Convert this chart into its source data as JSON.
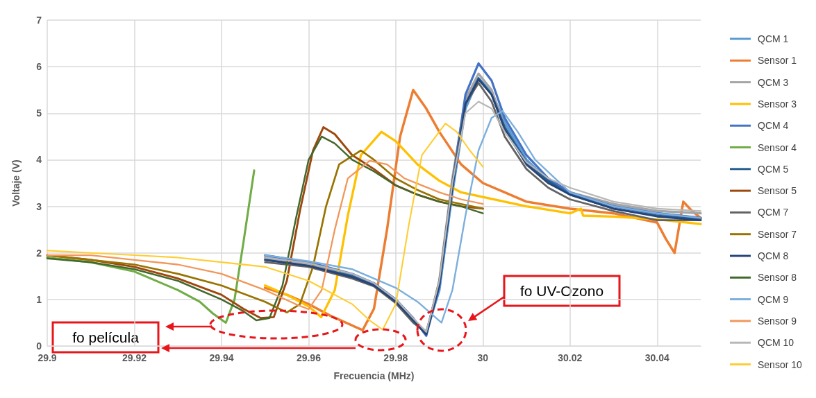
{
  "chart_data": {
    "type": "line",
    "xlabel": "Frecuencia (MHz)",
    "ylabel": "Voltaje (V)",
    "xlim": [
      29.9,
      30.05
    ],
    "xticks": [
      29.9,
      29.92,
      29.94,
      29.96,
      29.98,
      30,
      30.02,
      30.04
    ],
    "ylim": [
      0,
      7
    ],
    "yticks": [
      0,
      1,
      2,
      3,
      4,
      5,
      6,
      7
    ],
    "grid": true,
    "legend": "right",
    "marker": "none",
    "line_style": "solid",
    "annotations": [
      "fo película",
      "fo UV-Ozono"
    ],
    "series": [
      {
        "name": "QCM 1",
        "color": "#5b9bd5",
        "x": [
          29.95,
          29.96,
          29.97,
          29.975,
          29.98,
          29.984,
          29.987,
          29.99,
          29.993,
          29.996,
          29.999,
          30.002,
          30.005,
          30.01,
          30.015,
          30.02,
          30.03,
          30.04,
          30.05
        ],
        "values": [
          1.9,
          1.75,
          1.5,
          1.3,
          0.95,
          0.55,
          0.3,
          1.2,
          3.3,
          5.1,
          5.75,
          5.45,
          4.8,
          4.0,
          3.55,
          3.3,
          3.0,
          2.85,
          2.75
        ]
      },
      {
        "name": "Sensor 1",
        "color": "#ed7d31",
        "x": [
          29.95,
          29.955,
          29.96,
          29.965,
          29.9724,
          29.975,
          29.978,
          29.981,
          29.984,
          29.987,
          29.99,
          29.995,
          30.0,
          30.005,
          30.01,
          30.02,
          30.03,
          30.04,
          30.042,
          30.044,
          30.046,
          30.048,
          30.05
        ],
        "values": [
          1.25,
          1.1,
          0.9,
          0.65,
          0.34,
          0.8,
          2.5,
          4.5,
          5.5,
          5.1,
          4.6,
          3.9,
          3.5,
          3.3,
          3.1,
          2.95,
          2.85,
          2.65,
          2.3,
          2.0,
          3.1,
          2.9,
          2.75
        ]
      },
      {
        "name": "QCM 3",
        "color": "#a5a5a5",
        "x": [
          29.95,
          29.96,
          29.97,
          29.975,
          29.98,
          29.984,
          29.987,
          29.99,
          29.993,
          29.996,
          29.999,
          30.002,
          30.005,
          30.01,
          30.015,
          30.02,
          30.03,
          30.04,
          30.05
        ],
        "values": [
          1.9,
          1.75,
          1.5,
          1.3,
          0.95,
          0.55,
          0.25,
          1.4,
          3.6,
          5.3,
          5.85,
          5.5,
          4.7,
          3.9,
          3.5,
          3.3,
          3.05,
          2.9,
          2.85
        ]
      },
      {
        "name": "Sensor 3",
        "color": "#ffc000",
        "x": [
          29.95,
          29.955,
          29.96,
          29.9629,
          29.966,
          29.969,
          29.972,
          29.9767,
          29.98,
          29.985,
          29.99,
          29.995,
          30.0,
          30.01,
          30.02,
          30.0225,
          30.023,
          30.03,
          30.04,
          30.05
        ],
        "values": [
          1.3,
          1.1,
          0.85,
          0.62,
          1.2,
          2.8,
          4.1,
          4.6,
          4.4,
          3.9,
          3.55,
          3.3,
          3.2,
          3.0,
          2.85,
          2.95,
          2.8,
          2.78,
          2.72,
          2.62
        ]
      },
      {
        "name": "QCM 4",
        "color": "#4472c4",
        "x": [
          29.95,
          29.96,
          29.97,
          29.975,
          29.98,
          29.984,
          29.987,
          29.99,
          29.993,
          29.996,
          29.999,
          30.002,
          30.005,
          30.01,
          30.015,
          30.02,
          30.03,
          30.04,
          30.05
        ],
        "values": [
          1.95,
          1.8,
          1.55,
          1.35,
          1.0,
          0.6,
          0.22,
          1.3,
          3.5,
          5.4,
          6.07,
          5.7,
          4.9,
          4.1,
          3.6,
          3.3,
          3.0,
          2.85,
          2.75
        ]
      },
      {
        "name": "Sensor 4",
        "color": "#70ad47",
        "x": [
          29.9,
          29.91,
          29.92,
          29.93,
          29.935,
          29.938,
          29.941,
          29.943,
          29.945,
          29.9475
        ],
        "values": [
          1.9,
          1.8,
          1.6,
          1.2,
          0.95,
          0.7,
          0.5,
          1.0,
          2.2,
          3.77
        ]
      },
      {
        "name": "QCM 5",
        "color": "#255e91",
        "x": [
          29.95,
          29.96,
          29.97,
          29.975,
          29.98,
          29.984,
          29.987,
          29.99,
          29.993,
          29.996,
          29.999,
          30.002,
          30.005,
          30.01,
          30.015,
          30.02,
          30.03,
          30.04,
          30.05
        ],
        "values": [
          1.85,
          1.72,
          1.5,
          1.3,
          0.95,
          0.55,
          0.25,
          1.3,
          3.4,
          5.2,
          5.75,
          5.4,
          4.7,
          3.95,
          3.55,
          3.25,
          2.95,
          2.8,
          2.72
        ]
      },
      {
        "name": "Sensor 5",
        "color": "#9e480e",
        "x": [
          29.9,
          29.91,
          29.92,
          29.93,
          29.94,
          29.945,
          29.949,
          29.952,
          29.955,
          29.958,
          29.961,
          29.9634,
          29.966,
          29.97,
          29.975,
          29.98,
          29.985,
          29.99,
          29.995,
          30.0
        ],
        "values": [
          1.95,
          1.85,
          1.7,
          1.45,
          1.1,
          0.8,
          0.6,
          0.62,
          1.4,
          2.9,
          4.2,
          4.7,
          4.55,
          4.1,
          3.8,
          3.45,
          3.25,
          3.1,
          3.0,
          2.95
        ]
      },
      {
        "name": "QCM 7",
        "color": "#636363",
        "x": [
          29.95,
          29.96,
          29.97,
          29.975,
          29.98,
          29.984,
          29.987,
          29.99,
          29.993,
          29.996,
          29.999,
          30.002,
          30.005,
          30.01,
          30.015,
          30.02,
          30.03,
          30.04,
          30.05
        ],
        "values": [
          1.8,
          1.7,
          1.45,
          1.28,
          0.92,
          0.5,
          0.28,
          1.4,
          3.5,
          5.2,
          5.65,
          5.25,
          4.5,
          3.8,
          3.4,
          3.15,
          2.9,
          2.7,
          2.7
        ]
      },
      {
        "name": "Sensor 7",
        "color": "#997300",
        "x": [
          29.9,
          29.91,
          29.92,
          29.93,
          29.94,
          29.95,
          29.955,
          29.958,
          29.961,
          29.964,
          29.967,
          29.972,
          29.975,
          29.98,
          29.985,
          29.99,
          29.995,
          30.0
        ],
        "values": [
          1.95,
          1.85,
          1.75,
          1.55,
          1.3,
          0.95,
          0.72,
          0.9,
          1.7,
          3.0,
          3.9,
          4.2,
          4.0,
          3.6,
          3.35,
          3.15,
          3.05,
          2.95
        ]
      },
      {
        "name": "QCM 8",
        "color": "#264478",
        "x": [
          29.95,
          29.96,
          29.97,
          29.975,
          29.98,
          29.984,
          29.987,
          29.99,
          29.993,
          29.996,
          29.999,
          30.002,
          30.005,
          30.01,
          30.015,
          30.02,
          30.03,
          30.04,
          30.05
        ],
        "values": [
          1.85,
          1.72,
          1.48,
          1.3,
          0.95,
          0.55,
          0.25,
          1.3,
          3.4,
          5.2,
          5.72,
          5.4,
          4.65,
          3.9,
          3.5,
          3.25,
          2.95,
          2.78,
          2.7
        ]
      },
      {
        "name": "Sensor 8",
        "color": "#43682b",
        "x": [
          29.9,
          29.91,
          29.92,
          29.93,
          29.94,
          29.945,
          29.948,
          29.951,
          29.954,
          29.957,
          29.96,
          29.963,
          29.966,
          29.97,
          29.975,
          29.98,
          29.985,
          29.99,
          29.995,
          30.0
        ],
        "values": [
          1.88,
          1.8,
          1.65,
          1.4,
          1.0,
          0.75,
          0.55,
          0.6,
          1.3,
          2.7,
          4.0,
          4.5,
          4.35,
          4.0,
          3.75,
          3.45,
          3.25,
          3.1,
          3.0,
          2.85
        ]
      },
      {
        "name": "QCM 9",
        "color": "#7cafdd",
        "x": [
          29.95,
          29.96,
          29.97,
          29.98,
          29.985,
          29.9905,
          29.993,
          29.996,
          29.999,
          30.002,
          30.0045,
          30.008,
          30.012,
          30.02,
          30.03,
          30.04,
          30.05
        ],
        "values": [
          1.95,
          1.82,
          1.65,
          1.25,
          0.95,
          0.5,
          1.2,
          2.8,
          4.2,
          4.9,
          5.05,
          4.6,
          4.0,
          3.3,
          3.0,
          2.85,
          2.75
        ]
      },
      {
        "name": "Sensor 9",
        "color": "#f1975a",
        "x": [
          29.9,
          29.91,
          29.92,
          29.93,
          29.94,
          29.95,
          29.957,
          29.96,
          29.963,
          29.966,
          29.969,
          29.974,
          29.978,
          29.982,
          29.986,
          29.99,
          29.995,
          30.0
        ],
        "values": [
          1.95,
          1.95,
          1.85,
          1.75,
          1.55,
          1.2,
          0.9,
          0.79,
          1.2,
          2.5,
          3.6,
          3.98,
          3.9,
          3.6,
          3.45,
          3.3,
          3.15,
          3.05
        ]
      },
      {
        "name": "QCM 10",
        "color": "#b7b7b7",
        "x": [
          29.95,
          29.96,
          29.97,
          29.975,
          29.98,
          29.984,
          29.987,
          29.99,
          29.993,
          29.996,
          29.999,
          30.002,
          30.005,
          30.01,
          30.015,
          30.02,
          30.03,
          30.04,
          30.05
        ],
        "values": [
          1.9,
          1.78,
          1.55,
          1.35,
          1.0,
          0.6,
          0.3,
          1.4,
          3.5,
          5.0,
          5.25,
          5.1,
          4.6,
          3.95,
          3.6,
          3.4,
          3.1,
          2.95,
          2.9
        ]
      },
      {
        "name": "Sensor 10",
        "color": "#ffcd33",
        "x": [
          29.9,
          29.91,
          29.92,
          29.93,
          29.94,
          29.95,
          29.96,
          29.97,
          29.974,
          29.977,
          29.98,
          29.983,
          29.986,
          29.9914,
          29.994,
          29.997,
          30.0
        ],
        "values": [
          2.05,
          2.0,
          1.95,
          1.9,
          1.8,
          1.7,
          1.4,
          0.9,
          0.55,
          0.35,
          0.9,
          2.6,
          4.1,
          4.78,
          4.6,
          4.2,
          3.85
        ]
      }
    ]
  }
}
